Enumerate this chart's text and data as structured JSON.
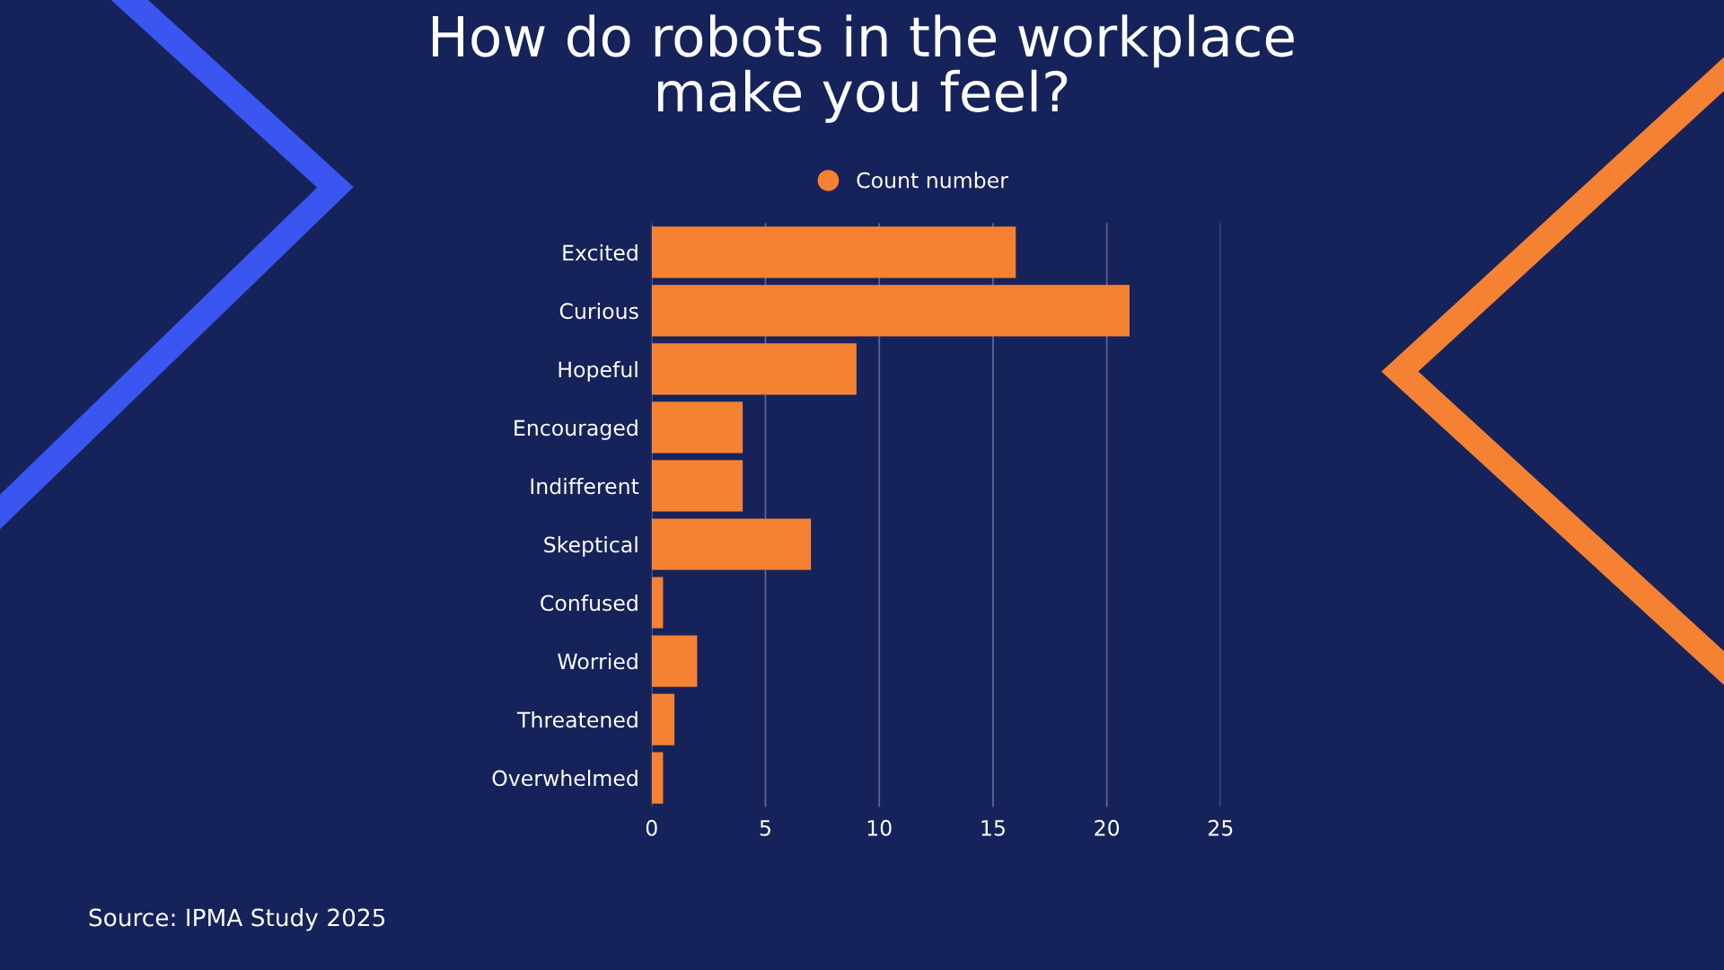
{
  "chart_data": {
    "type": "bar",
    "orientation": "horizontal",
    "title": "How do robots in the workplace\nmake you feel?",
    "categories": [
      "Excited",
      "Curious",
      "Hopeful",
      "Encouraged",
      "Indifferent",
      "Skeptical",
      "Confused",
      "Worried",
      "Threatened",
      "Overwhelmed"
    ],
    "series": [
      {
        "name": "Count number",
        "color": "#f58233",
        "values": [
          16,
          21,
          9,
          4,
          4,
          7,
          0.5,
          2,
          1,
          0.5
        ]
      }
    ],
    "xlim": [
      0,
      25
    ],
    "xticks": [
      0,
      5,
      10,
      15,
      20,
      25
    ],
    "grid": "x",
    "legend": "top",
    "annotations": [
      "Source: IPMA Study 2025"
    ]
  }
}
